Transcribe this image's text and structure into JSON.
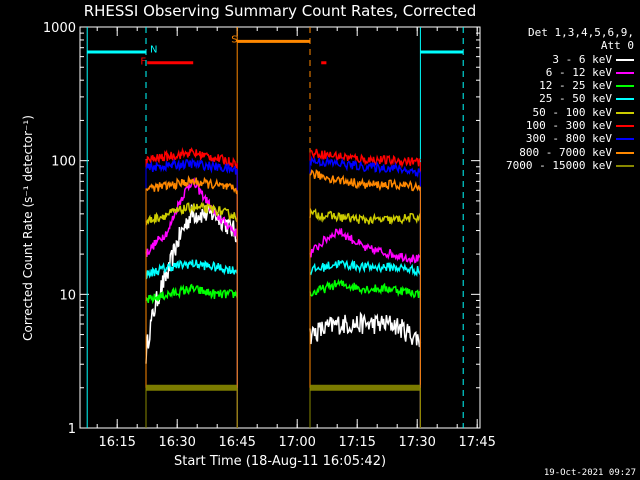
{
  "chart_data": {
    "type": "line",
    "title": "RHESSI Observing Summary Count Rates, Corrected",
    "xlabel": "Start Time (18-Aug-11 16:05:42)",
    "ylabel": "Corrected Count Rate (s⁻¹ detector⁻¹)",
    "yscale": "log",
    "ylim": [
      1,
      1000
    ],
    "xlim": [
      "16:05:42",
      "17:45:42"
    ],
    "x_unit": "minutes after 16:00",
    "x_ticks": [
      {
        "label": "16:15",
        "min": 15
      },
      {
        "label": "16:30",
        "min": 30
      },
      {
        "label": "16:45",
        "min": 45
      },
      {
        "label": "17:00",
        "min": 60
      },
      {
        "label": "17:15",
        "min": 75
      },
      {
        "label": "17:30",
        "min": 90
      },
      {
        "label": "17:45",
        "min": 105
      }
    ],
    "y_ticks": [
      {
        "label": "1",
        "value": 1
      },
      {
        "label": "10",
        "value": 10
      },
      {
        "label": "100",
        "value": 100
      },
      {
        "label": "1000",
        "value": 1000
      }
    ],
    "legend_header": [
      "Det 1,3,4,5,6,9,",
      "Att 0"
    ],
    "legend_position": "top-right outside",
    "segments": [
      [
        22.2,
        45.0
      ],
      [
        63.2,
        90.8
      ]
    ],
    "series": [
      {
        "name": "3 - 6 keV",
        "color": "#000000",
        "legend_color": "#ffffff",
        "smooth": "3-6"
      },
      {
        "name": "6 - 12 keV",
        "color": "#ff00ff"
      },
      {
        "name": "12 - 25 keV",
        "color": "#00ff00"
      },
      {
        "name": "25 - 50 keV",
        "color": "#00ffff"
      },
      {
        "name": "50 - 100 keV",
        "color": "#cccc00"
      },
      {
        "name": "100 - 300 keV",
        "color": "#ff0000"
      },
      {
        "name": "300 - 800 keV",
        "color": "#0000ff"
      },
      {
        "name": "800 - 7000 keV",
        "color": "#ff8800"
      },
      {
        "name": "7000 - 15000 keV",
        "color": "#888800"
      }
    ],
    "series_levels": [
      {
        "segment1": [
          3.5,
          15,
          40,
          40,
          28
        ],
        "segment2": [
          5,
          6,
          6,
          6,
          4.5
        ]
      },
      {
        "segment1": [
          20,
          30,
          70,
          40,
          28
        ],
        "segment2": [
          20,
          30,
          22,
          20,
          18
        ]
      },
      {
        "segment1": [
          9,
          10,
          11,
          10,
          10
        ],
        "segment2": [
          10,
          12,
          11,
          11,
          10
        ]
      },
      {
        "segment1": [
          14,
          16,
          17,
          16,
          15
        ],
        "segment2": [
          15,
          17,
          16,
          16,
          15
        ]
      },
      {
        "segment1": [
          35,
          40,
          45,
          43,
          38
        ],
        "segment2": [
          40,
          38,
          36,
          36,
          38
        ]
      },
      {
        "segment1": [
          100,
          108,
          115,
          105,
          95
        ],
        "segment2": [
          115,
          108,
          102,
          100,
          98
        ]
      },
      {
        "segment1": [
          88,
          92,
          95,
          90,
          85
        ],
        "segment2": [
          100,
          95,
          90,
          88,
          82
        ]
      },
      {
        "segment1": [
          62,
          65,
          70,
          66,
          60
        ],
        "segment2": [
          80,
          72,
          66,
          66,
          64
        ]
      },
      {
        "segment1": [
          2,
          2,
          2,
          2,
          2
        ],
        "segment2": [
          2,
          2,
          2,
          2,
          2
        ]
      }
    ],
    "annotations": {
      "vertical_lines": [
        {
          "min": 7.5,
          "color": "#00ffff",
          "style": "solid"
        },
        {
          "min": 22.2,
          "color": "#00ffff",
          "style": "dashed"
        },
        {
          "min": 45.0,
          "color": "#ff8800",
          "style": "solid"
        },
        {
          "min": 63.2,
          "color": "#ff8800",
          "style": "dashed"
        },
        {
          "min": 90.8,
          "color": "#00ffff",
          "style": "solid"
        },
        {
          "min": 101.5,
          "color": "#00ffff",
          "style": "dashed"
        }
      ],
      "bars": [
        {
          "from": 7.5,
          "to": 22.2,
          "value": 650,
          "color": "#00ffff"
        },
        {
          "from": 90.8,
          "to": 101.5,
          "value": 650,
          "color": "#00ffff"
        },
        {
          "from": 45.0,
          "to": 63.2,
          "value": 780,
          "color": "#ff8800"
        },
        {
          "from": 22.5,
          "to": 34.0,
          "value": 540,
          "color": "#ff0000"
        },
        {
          "from": 66.0,
          "to": 67.3,
          "value": 540,
          "color": "#ff0000"
        }
      ],
      "labels": [
        {
          "text": "N",
          "min": 23.2,
          "value": 690,
          "color": "#00ffff"
        },
        {
          "text": "S",
          "min": 43.5,
          "value": 820,
          "color": "#ff8800"
        },
        {
          "text": "F",
          "min": 20.8,
          "value": 560,
          "color": "#ff0000"
        }
      ]
    }
  },
  "timestamp": "19-Oct-2021 09:27"
}
